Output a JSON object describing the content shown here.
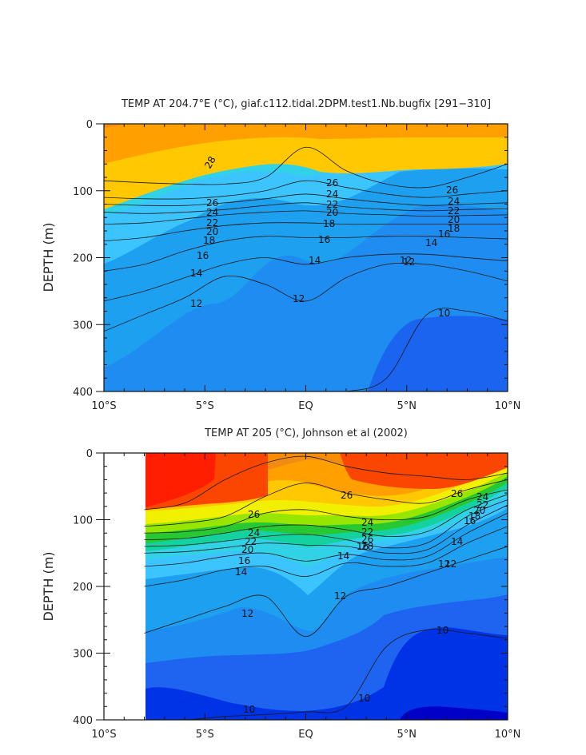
{
  "chart_data": [
    {
      "type": "contour",
      "title": "TEMP AT 204.7°E (°C), giaf.c112.tidal.2DPM.test1.Nb.bugfix [291−310]",
      "ylabel": "DEPTH (m)",
      "xlabel": "",
      "x_ticks": [
        "10°S",
        "5°S",
        "EQ",
        "5°N",
        "10°N"
      ],
      "y_ticks": [
        "0",
        "100",
        "200",
        "300",
        "400"
      ],
      "xlim": [
        -10,
        10
      ],
      "ylim": [
        400,
        0
      ],
      "y_reversed": true,
      "contour_labels": [
        "28",
        "26",
        "24",
        "22",
        "20",
        "18",
        "16",
        "14",
        "12",
        "26",
        "24",
        "22",
        "20",
        "18",
        "16",
        "14",
        "12",
        "12",
        "26",
        "24",
        "22",
        "20",
        "18",
        "16",
        "14",
        "12",
        "10"
      ],
      "isotherm_depths": {
        "x": [
          -10,
          -8,
          -6,
          -4,
          -2,
          0,
          2,
          4,
          6,
          8,
          10
        ],
        "levels": [
          {
            "t": 28,
            "d": [
              85,
              88,
              90,
              90,
              80,
              35,
              70,
              90,
              95,
              80,
              60
            ]
          },
          {
            "t": 26,
            "d": [
              110,
              112,
              112,
              108,
              100,
              85,
              95,
              105,
              110,
              105,
              100
            ]
          },
          {
            "t": 24,
            "d": [
              120,
              122,
              122,
              118,
              112,
              105,
              112,
              118,
              122,
              120,
              118
            ]
          },
          {
            "t": 22,
            "d": [
              132,
              134,
              132,
              128,
              122,
              118,
              124,
              128,
              130,
              128,
              127
            ]
          },
          {
            "t": 20,
            "d": [
              150,
              148,
              142,
              136,
              132,
              130,
              134,
              136,
              138,
              137,
              136
            ]
          },
          {
            "t": 18,
            "d": [
              175,
              170,
              160,
              152,
              148,
              148,
              150,
              150,
              150,
              150,
              150
            ]
          },
          {
            "t": 16,
            "d": [
              220,
              210,
              190,
              175,
              168,
              170,
              170,
              168,
              168,
              170,
              172
            ]
          },
          {
            "t": 14,
            "d": [
              265,
              250,
              230,
              210,
              200,
              210,
              200,
              195,
              195,
              200,
              205
            ]
          },
          {
            "t": 12,
            "d": [
              310,
              285,
              260,
              228,
              240,
              265,
              230,
              210,
              210,
              220,
              235
            ]
          },
          {
            "t": 10,
            "d": [
              400,
              400,
              400,
              400,
              400,
              400,
              400,
              380,
              285,
              280,
              295
            ]
          }
        ]
      }
    },
    {
      "type": "contour",
      "title": "TEMP AT 205 (°C), Johnson et al (2002)",
      "ylabel": "DEPTH (m)",
      "xlabel": "",
      "x_ticks": [
        "10°S",
        "5°S",
        "EQ",
        "5°N",
        "10°N"
      ],
      "y_ticks": [
        "0",
        "100",
        "200",
        "300",
        "400"
      ],
      "xlim": [
        -10,
        10
      ],
      "ylim": [
        400,
        0
      ],
      "y_reversed": true,
      "data_x_start": -8,
      "contour_labels": [
        "26",
        "24",
        "22",
        "20",
        "16",
        "14",
        "12",
        "26",
        "24",
        "22",
        "26",
        "28",
        "16",
        "14",
        "12",
        "12",
        "10",
        "10",
        "10",
        "26",
        "24",
        "22",
        "20",
        "18",
        "16",
        "14",
        "12"
      ],
      "isotherm_depths": {
        "x": [
          -8,
          -6,
          -4,
          -2,
          0,
          2,
          4,
          6,
          8,
          10
        ],
        "levels": [
          {
            "t": 28,
            "d": [
              85,
              75,
              40,
              15,
              5,
              20,
              30,
              35,
              40,
              30
            ]
          },
          {
            "t": 26,
            "d": [
              110,
              105,
              95,
              65,
              45,
              60,
              70,
              75,
              55,
              40
            ]
          },
          {
            "t": 24,
            "d": [
              120,
              118,
              110,
              90,
              85,
              95,
              100,
              95,
              70,
              55
            ]
          },
          {
            "t": 22,
            "d": [
              130,
              128,
              120,
              110,
              108,
              115,
              125,
              118,
              85,
              62
            ]
          },
          {
            "t": 20,
            "d": [
              140,
              138,
              132,
              125,
              122,
              130,
              142,
              135,
              95,
              70
            ]
          },
          {
            "t": 18,
            "d": [
              150,
              148,
              142,
              135,
              138,
              140,
              150,
              145,
              108,
              78
            ]
          },
          {
            "t": 16,
            "d": [
              170,
              165,
              155,
              150,
              162,
              152,
              160,
              155,
              120,
              90
            ]
          },
          {
            "t": 14,
            "d": [
              200,
              190,
              175,
              170,
              185,
              165,
              170,
              165,
              135,
              110
            ]
          },
          {
            "t": 12,
            "d": [
              270,
              250,
              230,
              215,
              275,
              215,
              200,
              180,
              160,
              140
            ]
          },
          {
            "t": 10,
            "d": [
              400,
              400,
              395,
              392,
              388,
              380,
              290,
              265,
              270,
              278
            ]
          }
        ]
      }
    }
  ]
}
